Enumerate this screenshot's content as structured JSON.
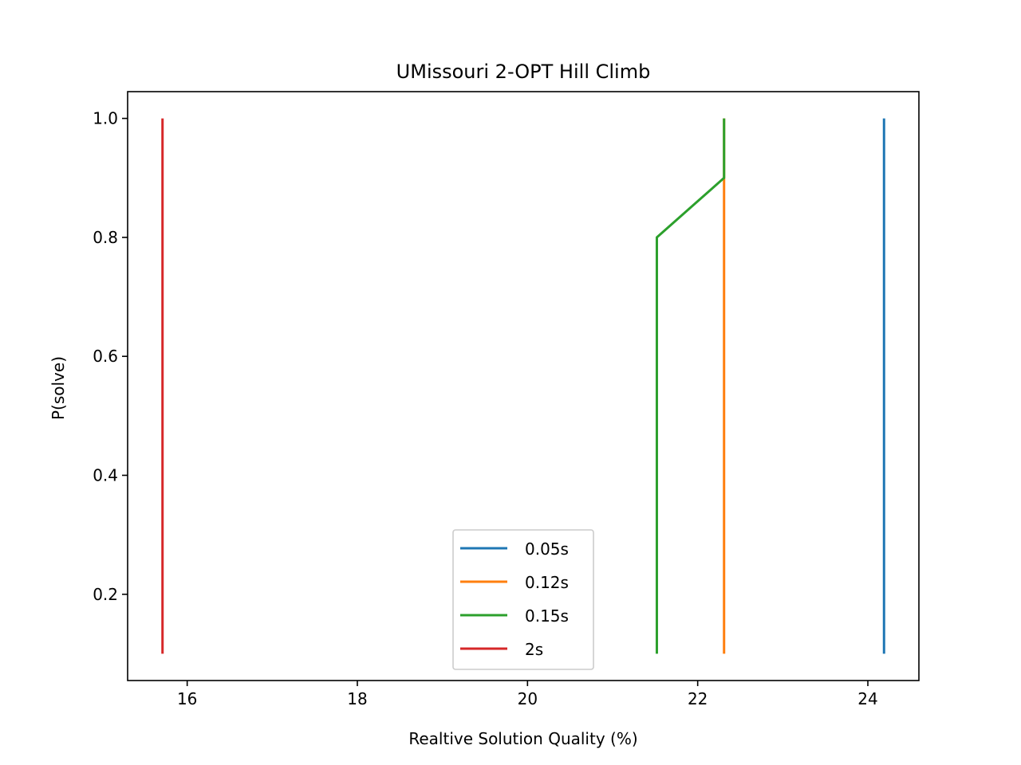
{
  "chart_data": {
    "type": "line",
    "title": "UMissouri 2-OPT Hill Climb",
    "xlabel": "Realtive Solution Quality (%)",
    "ylabel": "P(solve)",
    "xlim": [
      15.3,
      24.6
    ],
    "ylim": [
      0.055,
      1.045
    ],
    "xticks": [
      16,
      18,
      20,
      22,
      24
    ],
    "xtick_labels": [
      "16",
      "18",
      "20",
      "22",
      "24"
    ],
    "yticks": [
      0.2,
      0.4,
      0.6,
      0.8,
      1.0
    ],
    "ytick_labels": [
      "0.2",
      "0.4",
      "0.6",
      "0.8",
      "1.0"
    ],
    "grid": false,
    "legend_position": "bottom-center",
    "series": [
      {
        "name": "0.05s",
        "color": "#1f77b4",
        "x": [
          24.19,
          24.19
        ],
        "y": [
          0.1,
          1.0
        ]
      },
      {
        "name": "0.12s",
        "color": "#ff7f0e",
        "x": [
          22.31,
          22.31,
          22.31
        ],
        "y": [
          0.1,
          0.9,
          1.0
        ]
      },
      {
        "name": "0.15s",
        "color": "#2ca02c",
        "x": [
          21.52,
          21.52,
          22.31,
          22.31
        ],
        "y": [
          0.1,
          0.8,
          0.9,
          1.0
        ]
      },
      {
        "name": "2s",
        "color": "#d62728",
        "x": [
          15.71,
          15.71
        ],
        "y": [
          0.1,
          1.0
        ]
      }
    ]
  }
}
